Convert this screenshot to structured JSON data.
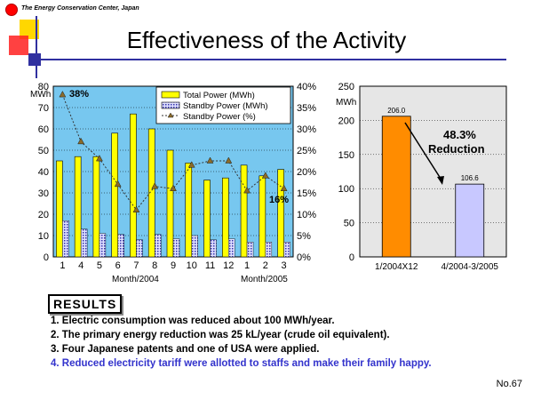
{
  "header": {
    "org": "The Energy Conservation Center, Japan",
    "title": "Effectiveness of the Activity"
  },
  "chart_data": [
    {
      "type": "bar",
      "categories": [
        "1",
        "4",
        "5",
        "6",
        "7",
        "8",
        "9",
        "10",
        "11",
        "12",
        "1",
        "2",
        "3"
      ],
      "series": [
        {
          "name": "Total Power (MWh)",
          "type": "bar",
          "axis": "left",
          "values": [
            45,
            47,
            47,
            58,
            67,
            60,
            50,
            44,
            36,
            37,
            43,
            38,
            41
          ]
        },
        {
          "name": "Standby Power (MWh)",
          "type": "bar",
          "axis": "left",
          "values": [
            17,
            13,
            11,
            10.5,
            8,
            10.5,
            8.5,
            10,
            8,
            8.5,
            7,
            7,
            7
          ]
        },
        {
          "name": "Standby Power (%)",
          "type": "line",
          "axis": "right",
          "values": [
            38,
            27,
            23,
            17,
            11,
            16.5,
            16,
            21.5,
            22.5,
            22.5,
            15.5,
            19,
            16
          ]
        }
      ],
      "ylabel": "MWh",
      "ylim": [
        0,
        80
      ],
      "yticks": [
        "0",
        "10",
        "20",
        "30",
        "40",
        "50",
        "60",
        "70",
        "80"
      ],
      "y2lim": [
        0,
        40
      ],
      "y2ticks": [
        "0%",
        "5%",
        "10%",
        "15%",
        "20%",
        "25%",
        "30%",
        "35%",
        "40%"
      ],
      "xlabels": [
        "Month/2004",
        "Month/2005"
      ],
      "annotations": [
        "38%",
        "16%"
      ],
      "legend": "top-right"
    },
    {
      "type": "bar",
      "categories": [
        "1/2004X12",
        "4/2004-3/2005"
      ],
      "values": [
        206.0,
        106.6
      ],
      "value_labels": [
        "206.0",
        "106.6"
      ],
      "colors": [
        "#ff8c00",
        "#c8c8ff"
      ],
      "ylabel": "MWh",
      "ylim": [
        0,
        250
      ],
      "yticks": [
        "0",
        "50",
        "100",
        "150",
        "200",
        "250"
      ],
      "annotation": [
        "48.3%",
        "Reduction"
      ]
    }
  ],
  "results": {
    "heading": "RESULTS",
    "items": [
      "1. Electric consumption was reduced about 100 MWh/year.",
      "2. The primary energy reduction was 25 kL/year (crude oil equivalent).",
      "3. Four Japanese patents and one of USA were applied.",
      "4. Reduced electricity tariff were allotted to staffs and make their family happy."
    ]
  },
  "page_number": "No.67"
}
